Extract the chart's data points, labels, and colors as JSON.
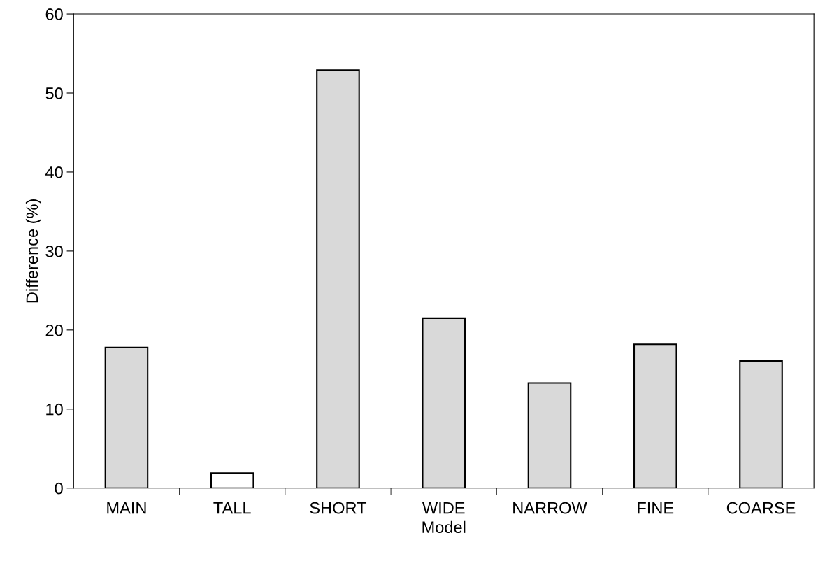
{
  "chart_data": {
    "type": "bar",
    "xlabel": "Model",
    "ylabel": "Difference (%)",
    "categories": [
      "MAIN",
      "TALL",
      "SHORT",
      "WIDE",
      "NARROW",
      "FINE",
      "COARSE"
    ],
    "values": [
      17.8,
      1.9,
      52.9,
      21.5,
      13.3,
      18.2,
      16.1
    ],
    "colors": [
      "#d9d9d9",
      "#ffffff",
      "#d9d9d9",
      "#d9d9d9",
      "#d9d9d9",
      "#d9d9d9",
      "#d9d9d9"
    ],
    "ylim": [
      0,
      60
    ],
    "yticks": [
      0,
      10,
      20,
      30,
      40,
      50,
      60
    ],
    "grid": false,
    "legend": false
  }
}
